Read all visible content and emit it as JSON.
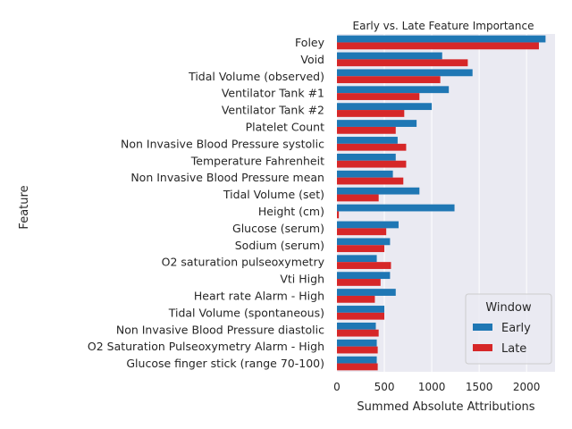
{
  "chart_data": {
    "type": "bar",
    "orientation": "horizontal",
    "title": "Early vs. Late Feature Importance",
    "xlabel": "Summed Absolute Attributions",
    "ylabel": "Feature",
    "xlim": [
      0,
      2300
    ],
    "xticks": [
      0,
      500,
      1000,
      1500,
      2000
    ],
    "grid": true,
    "legend": {
      "title": "Window",
      "position": "lower-right"
    },
    "categories": [
      "Foley",
      "Void",
      "Tidal Volume (observed)",
      "Ventilator Tank #1",
      "Ventilator Tank #2",
      "Platelet Count",
      "Non Invasive Blood Pressure systolic",
      "Temperature Fahrenheit",
      "Non Invasive Blood Pressure mean",
      "Tidal Volume (set)",
      "Height (cm)",
      "Glucose (serum)",
      "Sodium (serum)",
      "O2 saturation pulseoxymetry",
      "Vti High",
      "Heart rate Alarm - High",
      "Tidal Volume (spontaneous)",
      "Non Invasive Blood Pressure diastolic",
      "O2 Saturation Pulseoxymetry Alarm - High",
      "Glucose finger stick (range 70-100)"
    ],
    "series": [
      {
        "name": "Early",
        "color": "#1f77b4",
        "values": [
          2200,
          1110,
          1430,
          1180,
          1000,
          840,
          640,
          620,
          590,
          870,
          1240,
          650,
          560,
          420,
          560,
          620,
          500,
          410,
          420,
          420
        ]
      },
      {
        "name": "Late",
        "color": "#d62728",
        "values": [
          2130,
          1380,
          1090,
          870,
          710,
          620,
          730,
          730,
          700,
          440,
          20,
          520,
          500,
          570,
          460,
          400,
          500,
          440,
          430,
          430
        ]
      }
    ]
  }
}
